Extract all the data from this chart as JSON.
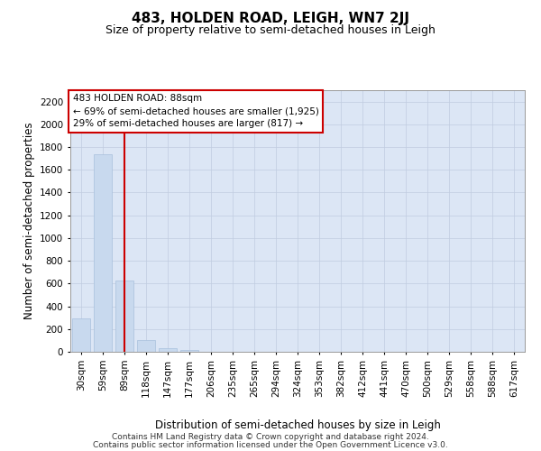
{
  "title": "483, HOLDEN ROAD, LEIGH, WN7 2JJ",
  "subtitle": "Size of property relative to semi-detached houses in Leigh",
  "xlabel": "Distribution of semi-detached houses by size in Leigh",
  "ylabel": "Number of semi-detached properties",
  "categories": [
    "30sqm",
    "59sqm",
    "89sqm",
    "118sqm",
    "147sqm",
    "177sqm",
    "206sqm",
    "235sqm",
    "265sqm",
    "294sqm",
    "324sqm",
    "353sqm",
    "382sqm",
    "412sqm",
    "441sqm",
    "470sqm",
    "500sqm",
    "529sqm",
    "558sqm",
    "588sqm",
    "617sqm"
  ],
  "values": [
    290,
    1740,
    630,
    105,
    30,
    18,
    0,
    0,
    0,
    0,
    0,
    0,
    0,
    0,
    0,
    0,
    0,
    0,
    0,
    0,
    0
  ],
  "bar_color": "#c8d9ee",
  "bar_edge_color": "#a8c0dc",
  "ylim": [
    0,
    2300
  ],
  "yticks": [
    0,
    200,
    400,
    600,
    800,
    1000,
    1200,
    1400,
    1600,
    1800,
    2000,
    2200
  ],
  "red_line_x": 2,
  "annotation_line1": "483 HOLDEN ROAD: 88sqm",
  "annotation_line2": "← 69% of semi-detached houses are smaller (1,925)",
  "annotation_line3": "29% of semi-detached houses are larger (817) →",
  "annotation_box_color": "#ffffff",
  "annotation_box_edgecolor": "#cc0000",
  "footer_line1": "Contains HM Land Registry data © Crown copyright and database right 2024.",
  "footer_line2": "Contains public sector information licensed under the Open Government Licence v3.0.",
  "background_color": "#ffffff",
  "plot_bg_color": "#dce6f5",
  "grid_color": "#c0cce0",
  "title_fontsize": 11,
  "subtitle_fontsize": 9,
  "axis_label_fontsize": 8.5,
  "tick_fontsize": 7.5,
  "footer_fontsize": 6.5,
  "annotation_fontsize": 7.5
}
